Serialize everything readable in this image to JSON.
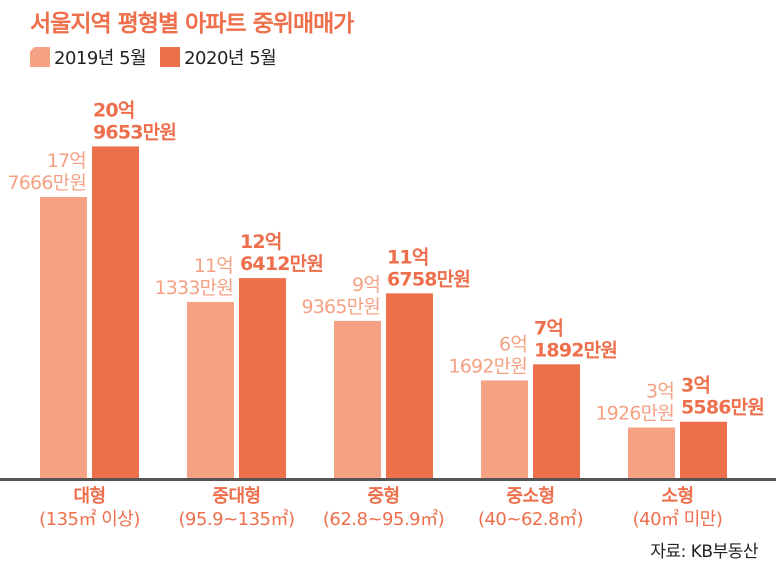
{
  "title": "서울지역 평형별 아파트 중위매매가",
  "legend": [
    {
      "label": "2019년 5월",
      "color": "#f5a284"
    },
    {
      "label": "2020년 5월",
      "color": "#ee6f4c"
    }
  ],
  "source": "자료: KB부동산",
  "chart_data": {
    "type": "bar",
    "title": "서울지역 평형별 아파트 중위매매가",
    "unit": "만원",
    "categories": [
      "대형",
      "중대형",
      "중형",
      "중소형",
      "소형"
    ],
    "category_sublabels": [
      "(135㎡ 이상)",
      "(95.9~135㎡)",
      "(62.8~95.9㎡)",
      "(40~62.8㎡)",
      "(40㎡ 미만)"
    ],
    "ylim": [
      0,
      215000
    ],
    "series": [
      {
        "name": "2019년 5월",
        "color": "#f5a284",
        "values": [
          177666,
          111333,
          99365,
          61692,
          31926
        ],
        "labels": [
          [
            "17억",
            "7666만원"
          ],
          [
            "11억",
            "1333만원"
          ],
          [
            "9억",
            "9365만원"
          ],
          [
            "6억",
            "1692만원"
          ],
          [
            "3억",
            "1926만원"
          ]
        ]
      },
      {
        "name": "2020년 5월",
        "color": "#ee6f4c",
        "values": [
          209653,
          126412,
          116758,
          71892,
          35586
        ],
        "labels": [
          [
            "20억",
            "9653만원"
          ],
          [
            "12억",
            "6412만원"
          ],
          [
            "11억",
            "6758만원"
          ],
          [
            "7억",
            "1892만원"
          ],
          [
            "3억",
            "5586만원"
          ]
        ]
      }
    ]
  }
}
